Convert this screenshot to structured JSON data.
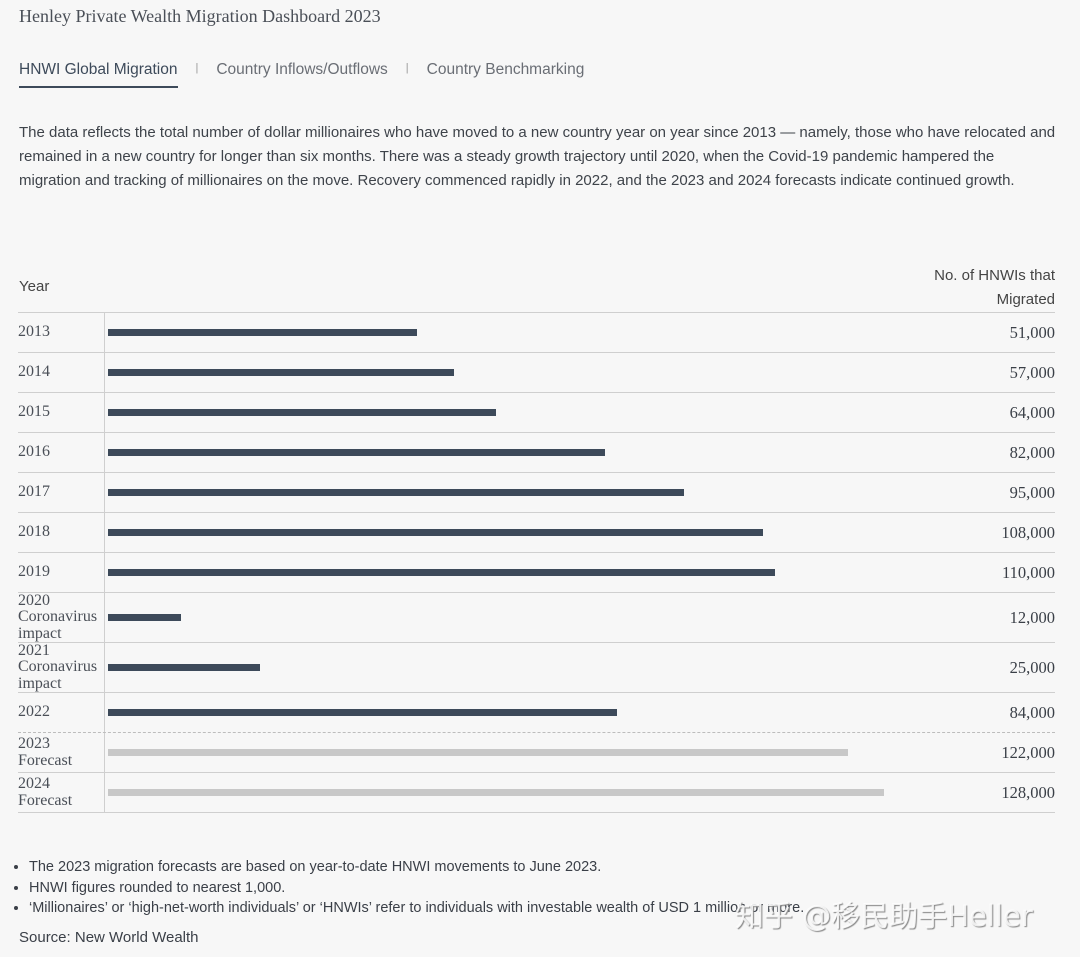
{
  "title": "Henley Private Wealth Migration Dashboard 2023",
  "tabs": [
    {
      "label": "HNWI Global Migration",
      "active": true
    },
    {
      "label": "Country Inflows/Outflows",
      "active": false
    },
    {
      "label": "Country Benchmarking",
      "active": false
    }
  ],
  "tab_separator": "|",
  "description": "The data reflects the total number of dollar millionaires who have moved to a new country year on year since 2013 — namely, those who have relocated and remained in a new country for longer than six months. There was a steady growth trajectory until 2020, when the Covid-19 pandemic hampered the migration and tracking of millionaires on the move. Recovery commenced rapidly in 2022, and the 2023 and 2024 forecasts indicate continued growth.",
  "colors": {
    "actual": "#3d4a5a",
    "forecast": "#c8c8c8"
  },
  "chart_data": {
    "type": "bar",
    "orientation": "horizontal",
    "xlabel": "Year",
    "ylabel": "No. of HNWIs that Migrated",
    "categories": [
      "2013",
      "2014",
      "2015",
      "2016",
      "2017",
      "2018",
      "2019",
      "2020",
      "2021",
      "2022",
      "2023",
      "2024"
    ],
    "sublabels": [
      "",
      "",
      "",
      "",
      "",
      "",
      "",
      "Coronavirus impact",
      "Coronavirus impact",
      "",
      "Forecast",
      "Forecast"
    ],
    "values": [
      51000,
      57000,
      64000,
      82000,
      95000,
      108000,
      110000,
      12000,
      25000,
      84000,
      122000,
      128000
    ],
    "value_labels": [
      "51,000",
      "57,000",
      "64,000",
      "82,000",
      "95,000",
      "108,000",
      "110,000",
      "12,000",
      "25,000",
      "84,000",
      "122,000",
      "128,000"
    ],
    "forecast": [
      false,
      false,
      false,
      false,
      false,
      false,
      false,
      false,
      false,
      false,
      true,
      true
    ]
  },
  "notes": [
    "The 2023 migration forecasts are based on year-to-date HNWI movements to June 2023.",
    "HNWI figures rounded to nearest 1,000.",
    "‘Millionaires’ or ‘high-net-worth individuals’ or ‘HNWIs’ refer to individuals with investable wealth of USD 1 million or more."
  ],
  "source": "Source: New World Wealth",
  "watermark": "知乎 @移民助手Heller"
}
